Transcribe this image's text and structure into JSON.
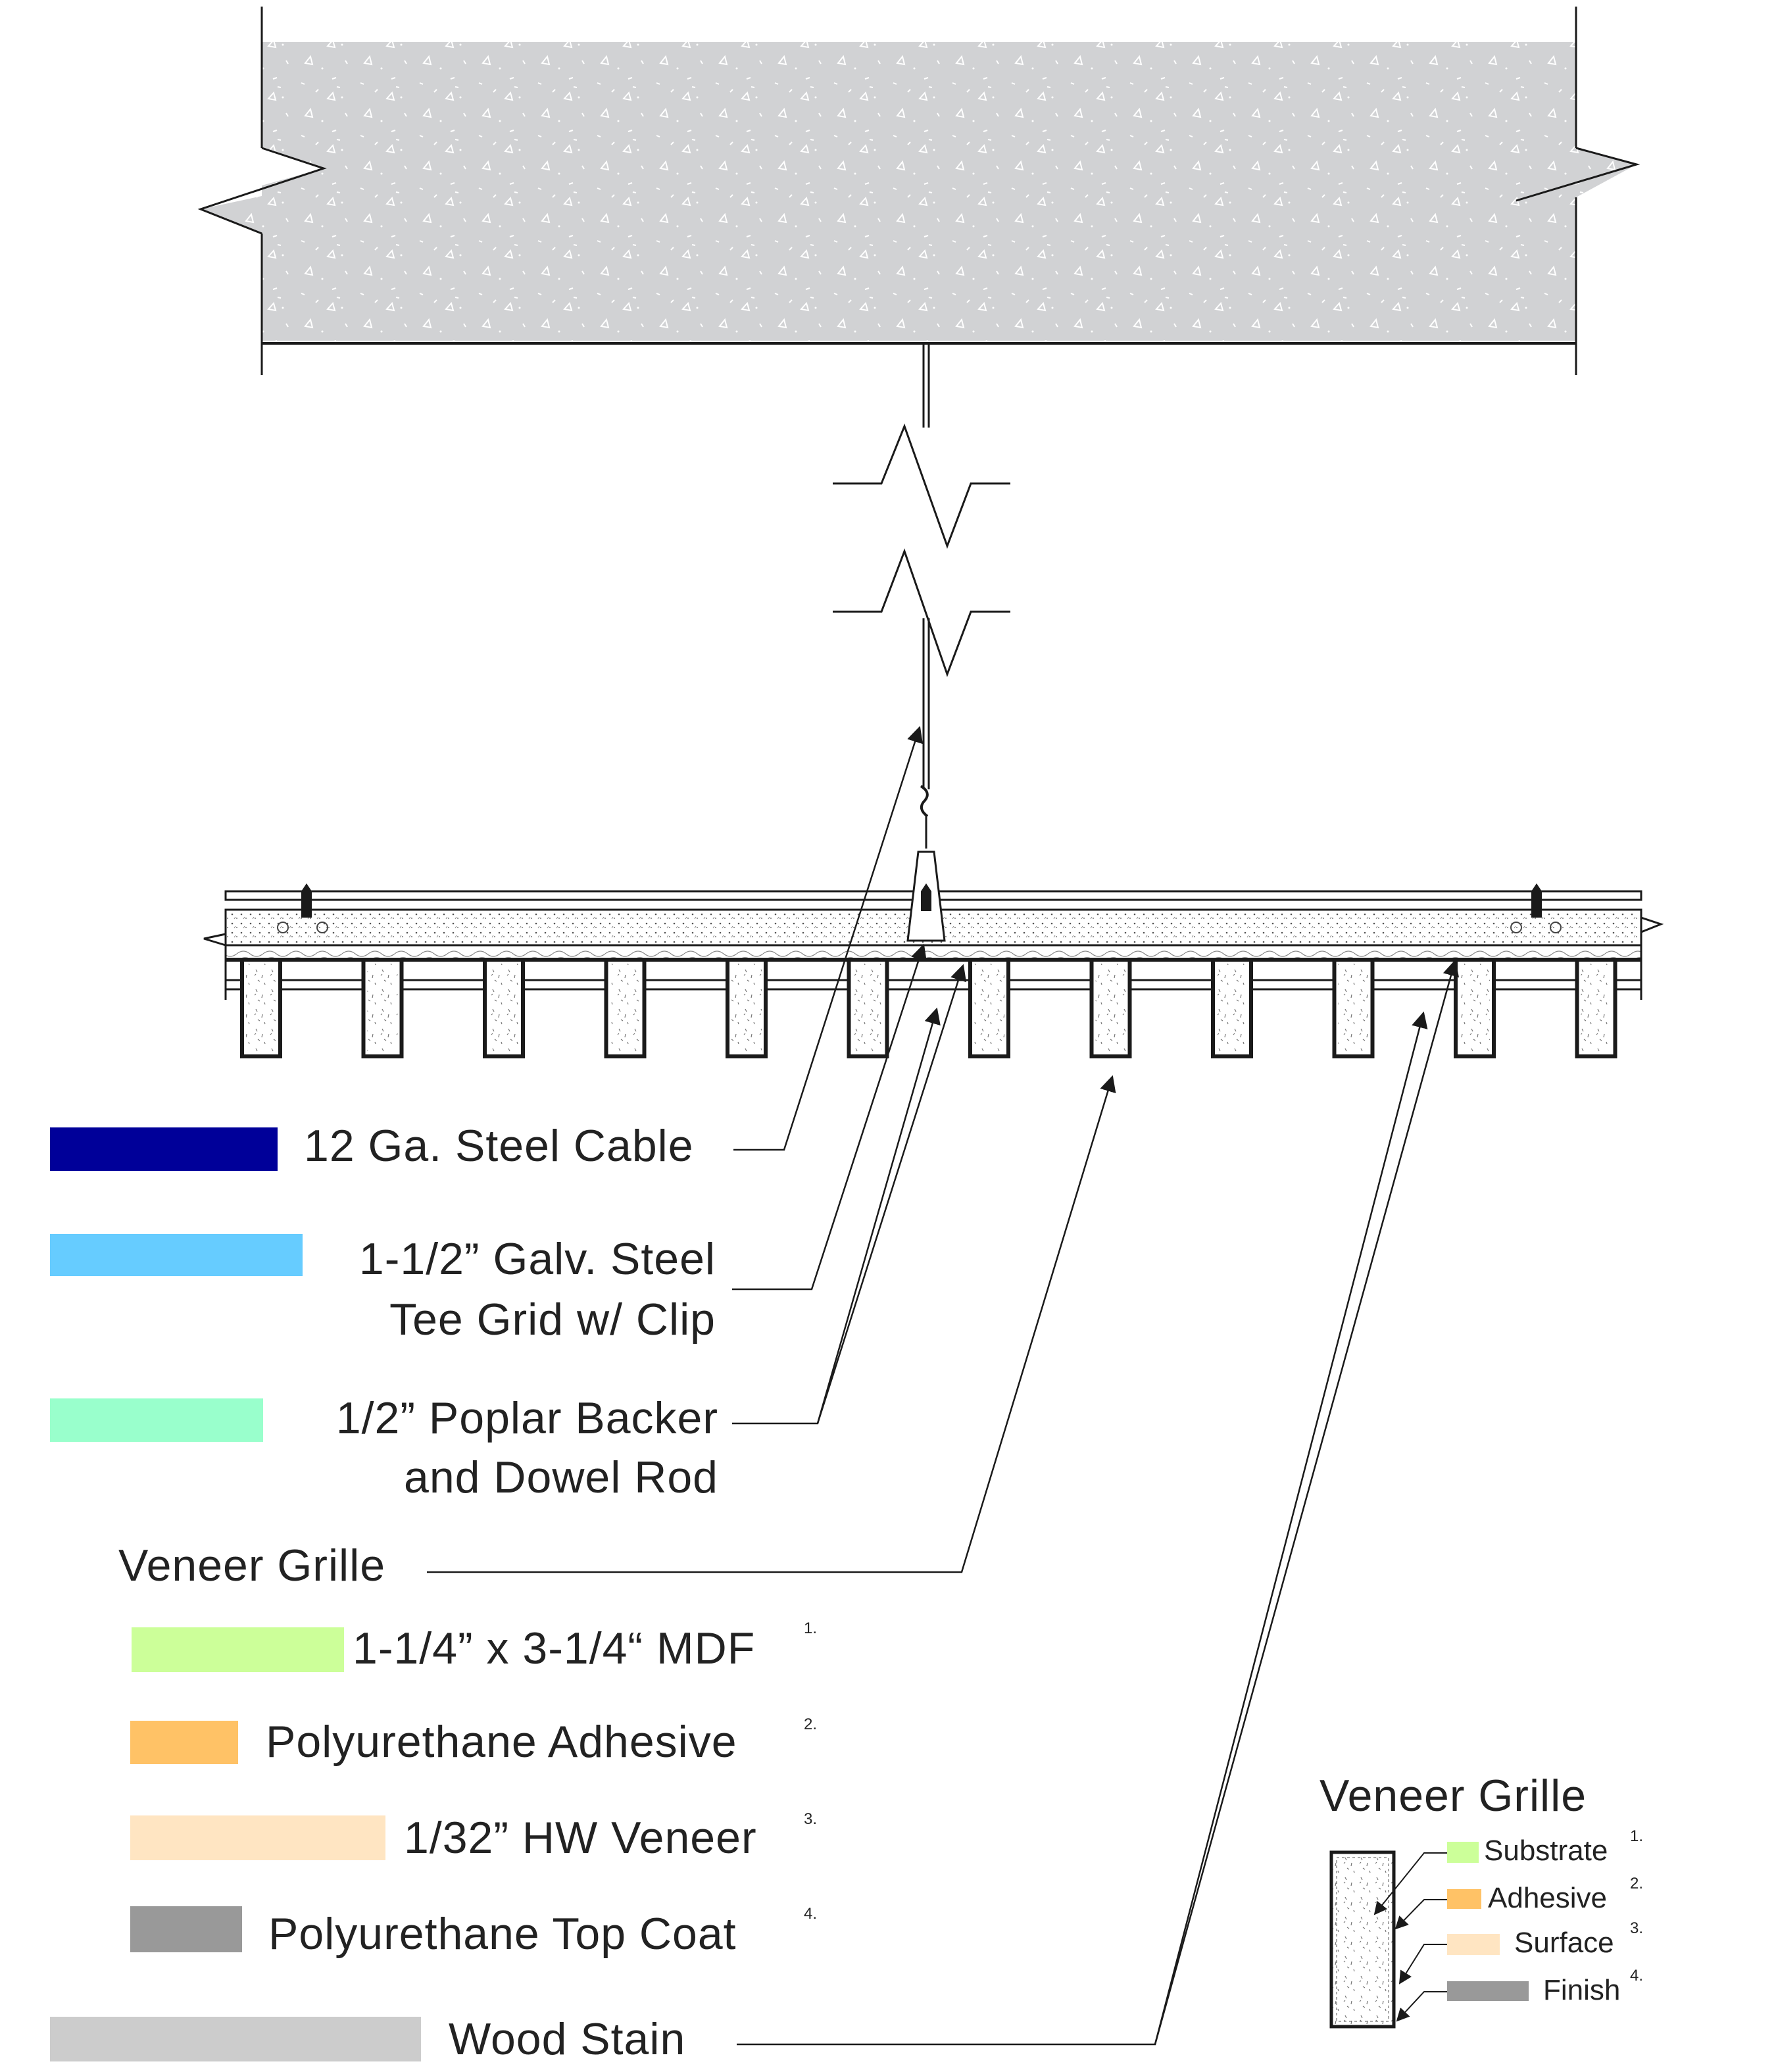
{
  "legend": {
    "cable": {
      "label": "12 Ga. Steel Cable",
      "color": "#000099"
    },
    "tee_grid": {
      "line1": "1-1/2” Galv. Steel",
      "line2": "Tee Grid w/ Clip",
      "color": "#66CCFF"
    },
    "backer": {
      "line1": "1/2” Poplar Backer",
      "line2": "and Dowel Rod",
      "color": "#99FFCC"
    },
    "grille_heading": "Veneer Grille",
    "mdf": {
      "label": "1-1/4” x 3-1/4“ MDF",
      "num": "1.",
      "color": "#CCFF99"
    },
    "adhesive": {
      "label": "Polyurethane Adhesive",
      "num": "2.",
      "color": "#FFC266"
    },
    "veneer": {
      "label": "1/32” HW Veneer",
      "num": "3.",
      "color": "#FFE5C2"
    },
    "topcoat": {
      "label": "Polyurethane Top Coat",
      "num": "4.",
      "color": "#999999"
    },
    "stain": {
      "label": "Wood Stain",
      "color": "#CCCCCC"
    }
  },
  "detail": {
    "title": "Veneer Grille",
    "items": [
      {
        "label": "Substrate",
        "num": "1.",
        "color": "#CCFF99"
      },
      {
        "label": "Adhesive",
        "num": "2.",
        "color": "#FFC266"
      },
      {
        "label": "Surface",
        "num": "3.",
        "color": "#FFE5C2"
      },
      {
        "label": "Finish",
        "num": "4.",
        "color": "#999999"
      }
    ]
  },
  "colors": {
    "concrete": "#D1D2D4",
    "line": "#1a1a1a",
    "fill_light": "#F2F2F2"
  }
}
